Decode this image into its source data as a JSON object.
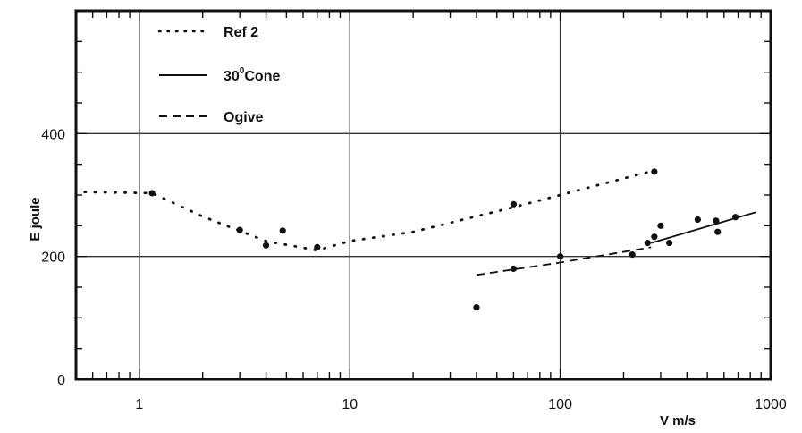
{
  "chart_data": {
    "type": "scatter",
    "title": "",
    "xlabel": "V  m/s",
    "ylabel": "E  joule",
    "xscale": "log",
    "xlim": [
      0.5,
      1000
    ],
    "ylim": [
      0,
      600
    ],
    "x_tick_labels": [
      {
        "value": 1,
        "label": "1"
      },
      {
        "value": 10,
        "label": "10"
      },
      {
        "value": 100,
        "label": "100"
      },
      {
        "value": 1000,
        "label": "1000"
      }
    ],
    "y_tick_labels": [
      {
        "value": 0,
        "label": "0"
      },
      {
        "value": 200,
        "label": "200"
      },
      {
        "value": 400,
        "label": "400"
      }
    ],
    "grid": true,
    "legend_position": "top-left",
    "legend": [
      {
        "label": "Ref 2",
        "style": "dotted",
        "sup": ""
      },
      {
        "label": "30",
        "sup": "0",
        "suffix": "Cone",
        "style": "solid"
      },
      {
        "label": "Ogive",
        "style": "dashed",
        "sup": ""
      }
    ],
    "series": [
      {
        "name": "Ref 2",
        "style": "dotted",
        "x": [
          0.55,
          1.15,
          2,
          4,
          7,
          10,
          20,
          60,
          100,
          280
        ],
        "y": [
          305,
          303,
          265,
          225,
          210,
          225,
          240,
          280,
          300,
          340
        ]
      },
      {
        "name": "30° Cone",
        "style": "solid",
        "x": [
          270,
          850
        ],
        "y": [
          222,
          272
        ]
      },
      {
        "name": "Ogive",
        "style": "dashed",
        "x": [
          40,
          100,
          270
        ],
        "y": [
          170,
          190,
          215
        ]
      }
    ],
    "points": {
      "x": [
        1.15,
        3,
        4,
        4.8,
        7,
        40,
        60,
        60,
        100,
        220,
        260,
        280,
        300,
        330,
        450,
        550,
        560,
        680,
        280
      ],
      "y": [
        303,
        243,
        218,
        242,
        215,
        117,
        285,
        180,
        200,
        203,
        222,
        232,
        250,
        222,
        260,
        258,
        240,
        264,
        338
      ]
    }
  },
  "colors": {
    "ink": "#111111",
    "background": "#ffffff"
  }
}
